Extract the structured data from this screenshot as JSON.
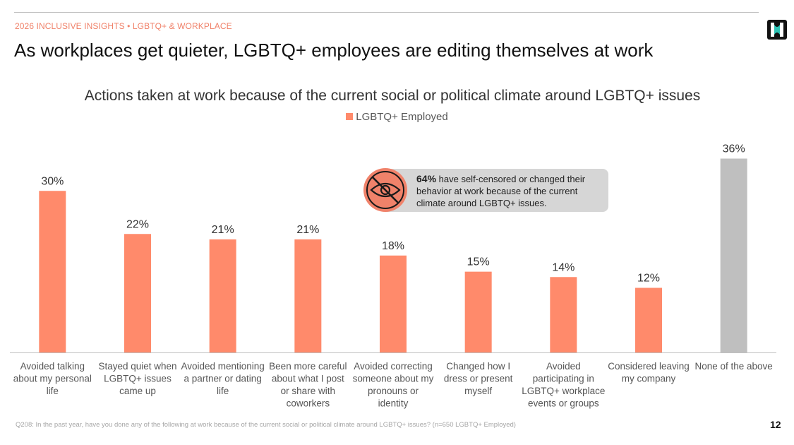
{
  "header": {
    "eyebrow": "2026 INCLUSIVE INSIGHTS • LGBTQ+ & WORKPLACE",
    "headline": "As workplaces get quieter, LGBTQ+ employees are editing themselves at work",
    "logo_icon": "brand-logo-icon"
  },
  "callout": {
    "stat": "64%",
    "text": " have self-censored or changed their behavior at work because of the current climate around LGBTQ+ issues.",
    "icon": "eye-slash-icon"
  },
  "footer": {
    "footnote": "Q208: In the past year, have you done any of the following at work because of the current social or political climate around LGBTQ+ issues? (n=650 LGBTQ+ Employed)",
    "page_number": "12"
  },
  "colors": {
    "accent": "#f0826a",
    "bar": "#ff8a6b",
    "neutral_bar": "#bfbfbf",
    "callout_bg": "#d6d6d6"
  },
  "chart_data": {
    "type": "bar",
    "title": "Actions taken at work because of the current social or political climate around LGBTQ+ issues",
    "legend": [
      "LGBTQ+ Employed"
    ],
    "legend_position": "top-center",
    "grid": false,
    "ylim": [
      0,
      40
    ],
    "categories": [
      [
        "Avoided talking",
        "about my personal",
        "life"
      ],
      [
        "Stayed quiet when",
        "LGBTQ+ issues",
        "came up"
      ],
      [
        "Avoided mentioning",
        "a partner or dating",
        "life"
      ],
      [
        "Been more careful",
        "about what I post",
        "or share with",
        "coworkers"
      ],
      [
        "Avoided correcting",
        "someone about my",
        "pronouns or",
        "identity"
      ],
      [
        "Changed how I",
        "dress or present",
        "myself"
      ],
      [
        "Avoided",
        "participating in",
        "LGBTQ+ workplace",
        "events or groups"
      ],
      [
        "Considered leaving",
        "my company"
      ],
      [
        "None of the above"
      ]
    ],
    "series": [
      {
        "name": "LGBTQ+ Employed",
        "values": [
          30,
          22,
          21,
          21,
          18,
          15,
          14,
          12,
          36
        ],
        "labels": [
          "30%",
          "22%",
          "21%",
          "21%",
          "18%",
          "15%",
          "14%",
          "12%",
          "36%"
        ],
        "highlight_last_neutral": true
      }
    ]
  }
}
